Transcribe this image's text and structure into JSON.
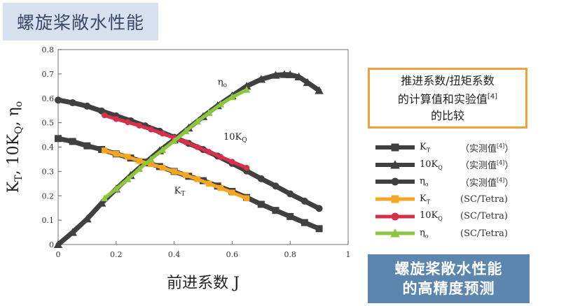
{
  "title_tag": "螺旋桨敞水性能",
  "note_box": {
    "line1": "推进系数/扭矩系数",
    "line2": "的计算值和实验值",
    "line2_ref": "[4]",
    "line3": "的比较"
  },
  "banner": {
    "line1": "螺旋桨敞水性能",
    "line2": "的高精度预测"
  },
  "legend": [
    {
      "symbol": "K",
      "sub": "T",
      "source": "（实测值",
      "ref": "[4]",
      "source_end": "）",
      "color": "#404040",
      "marker": "square"
    },
    {
      "symbol": "10K",
      "sub": "Q",
      "source": "（实测值",
      "ref": "[4]",
      "source_end": "）",
      "color": "#404040",
      "marker": "triangle"
    },
    {
      "symbol": "η",
      "sub": "o",
      "source": "（实测值",
      "ref": "[4]",
      "source_end": "）",
      "color": "#404040",
      "marker": "circle"
    },
    {
      "symbol": "K",
      "sub": "T",
      "source": "(SC/Tetra)",
      "ref": "",
      "source_end": "",
      "color": "#f5a623",
      "marker": "square"
    },
    {
      "symbol": "10K",
      "sub": "Q",
      "source": "(SC/Tetra)",
      "ref": "",
      "source_end": "",
      "color": "#d8304a",
      "marker": "circle"
    },
    {
      "symbol": "η",
      "sub": "o",
      "source": "(SC/Tetra)",
      "ref": "",
      "source_end": "",
      "color": "#8cc63f",
      "marker": "triangle"
    }
  ],
  "chart_data": {
    "type": "line",
    "xlabel": "前进系数 J",
    "ylabel": "KT, 10KQ, ηo",
    "ylabel_parts": {
      "k": "K",
      "k_sub": "T",
      "sep": ", 10K",
      "q_sub": "Q",
      "sep2": ", η",
      "o_sub": "o"
    },
    "xlim": [
      0,
      1
    ],
    "ylim": [
      0,
      0.8
    ],
    "xticks": [
      "0",
      "0.2",
      "0.4",
      "0.6",
      "0.8",
      "1"
    ],
    "xtick_values": [
      0,
      0.2,
      0.4,
      0.6,
      0.8,
      1
    ],
    "yticks": [
      "0",
      "0.1",
      "0.2",
      "0.3",
      "0.4",
      "0.5",
      "0.6",
      "0.7",
      "0.8"
    ],
    "ytick_values": [
      0,
      0.1,
      0.2,
      0.3,
      0.4,
      0.5,
      0.6,
      0.7,
      0.8
    ],
    "grid": false,
    "annotations": [
      {
        "text": "η",
        "sub": "o",
        "x": 0.55,
        "y": 0.655
      },
      {
        "text": "10K",
        "sub": "Q",
        "x": 0.57,
        "y": 0.43
      },
      {
        "text": "K",
        "sub": "T",
        "x": 0.4,
        "y": 0.21
      }
    ],
    "series": [
      {
        "name": "KT (实测值[4])",
        "color": "#404040",
        "marker": "square",
        "width": 7,
        "x": [
          0,
          0.05,
          0.1,
          0.15,
          0.2,
          0.25,
          0.3,
          0.35,
          0.4,
          0.45,
          0.5,
          0.55,
          0.6,
          0.65,
          0.7,
          0.75,
          0.8,
          0.85,
          0.9
        ],
        "y": [
          0.435,
          0.423,
          0.405,
          0.39,
          0.372,
          0.355,
          0.338,
          0.32,
          0.3,
          0.28,
          0.262,
          0.24,
          0.218,
          0.193,
          0.165,
          0.14,
          0.115,
          0.09,
          0.065
        ]
      },
      {
        "name": "10KQ (实测值[4])",
        "color": "#404040",
        "marker": "triangle",
        "width": 7,
        "x": [
          0,
          0.05,
          0.1,
          0.15,
          0.2,
          0.25,
          0.3,
          0.35,
          0.4,
          0.45,
          0.5,
          0.55,
          0.6,
          0.65,
          0.7,
          0.75,
          0.78,
          0.8,
          0.83,
          0.86,
          0.9
        ],
        "y": [
          0,
          0.05,
          0.105,
          0.17,
          0.228,
          0.283,
          0.335,
          0.385,
          0.43,
          0.478,
          0.525,
          0.57,
          0.61,
          0.65,
          0.678,
          0.695,
          0.698,
          0.697,
          0.688,
          0.665,
          0.632
        ]
      },
      {
        "name": "ηo (实测值[4])",
        "color": "#404040",
        "marker": "circle",
        "width": 7,
        "x": [
          0,
          0.05,
          0.1,
          0.15,
          0.2,
          0.25,
          0.3,
          0.35,
          0.4,
          0.45,
          0.5,
          0.55,
          0.6,
          0.65,
          0.7,
          0.75,
          0.8,
          0.85,
          0.9
        ],
        "y": [
          0.593,
          0.582,
          0.568,
          0.548,
          0.528,
          0.508,
          0.487,
          0.465,
          0.44,
          0.415,
          0.39,
          0.363,
          0.333,
          0.302,
          0.27,
          0.24,
          0.208,
          0.178,
          0.148
        ]
      },
      {
        "name": "KT (SC/Tetra)",
        "color": "#f5a623",
        "marker": "square",
        "width": 5,
        "x": [
          0.16,
          0.2,
          0.24,
          0.28,
          0.32,
          0.36,
          0.4,
          0.44,
          0.48,
          0.52,
          0.56,
          0.6,
          0.65
        ],
        "y": [
          0.386,
          0.372,
          0.36,
          0.343,
          0.33,
          0.315,
          0.3,
          0.285,
          0.268,
          0.25,
          0.232,
          0.213,
          0.19
        ]
      },
      {
        "name": "10KQ (SC/Tetra)",
        "color": "#d8304a",
        "marker": "circle",
        "width": 5,
        "x": [
          0.16,
          0.2,
          0.24,
          0.28,
          0.32,
          0.36,
          0.4,
          0.44,
          0.48,
          0.52,
          0.56,
          0.6,
          0.65
        ],
        "y": [
          0.53,
          0.515,
          0.502,
          0.488,
          0.472,
          0.455,
          0.438,
          0.42,
          0.4,
          0.38,
          0.36,
          0.34,
          0.315
        ]
      },
      {
        "name": "ηo (SC/Tetra)",
        "color": "#8cc63f",
        "marker": "triangle",
        "width": 5,
        "x": [
          0.16,
          0.2,
          0.24,
          0.28,
          0.32,
          0.36,
          0.4,
          0.44,
          0.48,
          0.52,
          0.56,
          0.6,
          0.65
        ],
        "y": [
          0.19,
          0.228,
          0.268,
          0.31,
          0.35,
          0.388,
          0.425,
          0.465,
          0.505,
          0.54,
          0.575,
          0.605,
          0.635
        ]
      }
    ]
  }
}
